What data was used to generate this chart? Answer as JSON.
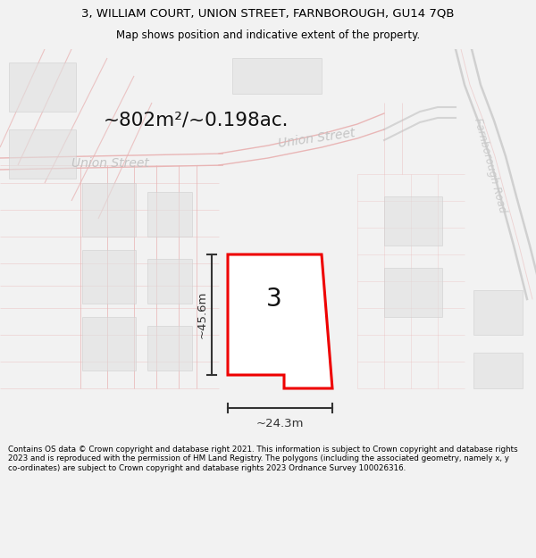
{
  "title_line1": "3, WILLIAM COURT, UNION STREET, FARNBOROUGH, GU14 7QB",
  "title_line2": "Map shows position and indicative extent of the property.",
  "area_text": "~802m²/~0.198ac.",
  "label_number": "3",
  "dim_height": "~45.6m",
  "dim_width": "~24.3m",
  "footer_text": "Contains OS data © Crown copyright and database right 2021. This information is subject to Crown copyright and database rights 2023 and is reproduced with the permission of HM Land Registry. The polygons (including the associated geometry, namely x, y co-ordinates) are subject to Crown copyright and database rights 2023 Ordnance Survey 100026316.",
  "bg_color": "#f2f2f2",
  "map_bg": "#f8f8f8",
  "property_fill": "#ffffff",
  "property_edge": "#ee0000",
  "dim_color": "#333333",
  "title_color": "#000000",
  "footer_color": "#000000",
  "road_pink": "#e8b0b0",
  "road_pink2": "#f0c8c8",
  "building_fill": "#e0e0e0",
  "building_edge": "#cccccc",
  "road_grey": "#c8c8c8",
  "street_label": "#c0c0c0",
  "road_label": "#c8c8c8"
}
